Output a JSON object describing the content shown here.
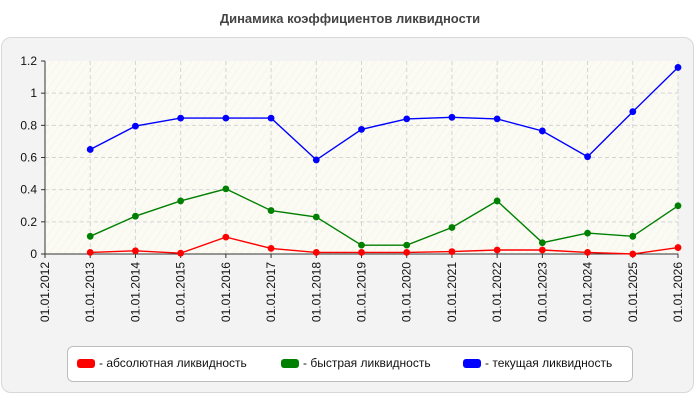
{
  "chart_data": {
    "type": "line",
    "title": "Динамика коэффициентов ликвидности",
    "x": [
      "01.01.2012",
      "01.01.2013",
      "01.01.2014",
      "01.01.2015",
      "01.01.2016",
      "01.01.2017",
      "01.01.2018",
      "01.01.2019",
      "01.01.2020",
      "01.01.2021",
      "01.01.2022",
      "01.01.2023",
      "01.01.2024",
      "01.01.2025",
      "01.01.2026"
    ],
    "yticks": [
      "0",
      "0.2",
      "0.4",
      "0.6",
      "0.8",
      "1",
      "1.2"
    ],
    "ylim": [
      0,
      1.2
    ],
    "grid": true,
    "legend_position": "bottom",
    "series": [
      {
        "name": "- абсолютная ликвидность",
        "color": "#ff0000",
        "values": [
          null,
          0.01,
          0.02,
          0.005,
          0.105,
          0.035,
          0.01,
          0.01,
          0.01,
          0.015,
          0.025,
          0.025,
          0.01,
          0.0,
          0.04
        ]
      },
      {
        "name": "- быстрая ликвидность",
        "color": "#008000",
        "values": [
          null,
          0.11,
          0.235,
          0.33,
          0.405,
          0.27,
          0.23,
          0.055,
          0.055,
          0.165,
          0.33,
          0.07,
          0.13,
          0.11,
          0.3
        ]
      },
      {
        "name": "- текущая ликвидность",
        "color": "#0000ff",
        "values": [
          null,
          0.65,
          0.795,
          0.845,
          0.845,
          0.845,
          0.585,
          0.775,
          0.84,
          0.85,
          0.84,
          0.765,
          0.605,
          0.885,
          1.16
        ]
      }
    ]
  }
}
